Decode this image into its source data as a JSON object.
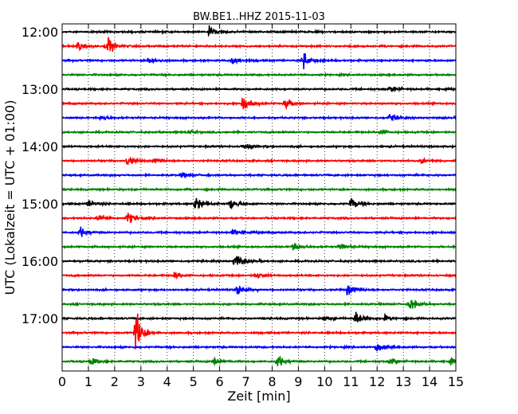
{
  "chart_data": {
    "type": "line",
    "title": "BW.BE1..HHZ 2015-11-03",
    "xlabel": "Zeit  [min]",
    "ylabel": "UTC (Lokalzeit = UTC + 01:00)",
    "xlim": [
      0,
      15
    ],
    "x_ticks": [
      "0",
      "1",
      "2",
      "3",
      "4",
      "5",
      "6",
      "7",
      "8",
      "9",
      "10",
      "11",
      "12",
      "13",
      "14",
      "15"
    ],
    "y_ticks": [
      "12:00",
      "13:00",
      "14:00",
      "15:00",
      "16:00",
      "17:00"
    ],
    "grid": true,
    "trace_interval_minutes": 15,
    "colors": [
      "#000000",
      "#ff0000",
      "#0000ff",
      "#008000"
    ],
    "traces": [
      {
        "start": "12:00",
        "events": [
          {
            "t": 5.6,
            "a": 9
          }
        ]
      },
      {
        "start": "12:15",
        "events": [
          {
            "t": 0.6,
            "a": 7
          },
          {
            "t": 1.7,
            "a": 20
          }
        ]
      },
      {
        "start": "12:30",
        "events": [
          {
            "t": 3.3,
            "a": 7
          },
          {
            "t": 6.5,
            "a": 9
          },
          {
            "t": 9.2,
            "a": 16
          }
        ]
      },
      {
        "start": "12:45",
        "events": []
      },
      {
        "start": "13:00",
        "events": [
          {
            "t": 12.5,
            "a": 6
          }
        ]
      },
      {
        "start": "13:15",
        "events": [
          {
            "t": 6.9,
            "a": 15
          },
          {
            "t": 8.5,
            "a": 10
          }
        ]
      },
      {
        "start": "13:30",
        "events": [
          {
            "t": 1.5,
            "a": 4
          },
          {
            "t": 12.5,
            "a": 7
          }
        ]
      },
      {
        "start": "13:45",
        "events": [
          {
            "t": 4.8,
            "a": 4
          },
          {
            "t": 12.1,
            "a": 5
          }
        ]
      },
      {
        "start": "14:00",
        "events": [
          {
            "t": 6.9,
            "a": 5
          }
        ]
      },
      {
        "start": "14:15",
        "events": [
          {
            "t": 2.5,
            "a": 8
          },
          {
            "t": 3.5,
            "a": 5
          },
          {
            "t": 13.7,
            "a": 4
          }
        ]
      },
      {
        "start": "14:30",
        "events": [
          {
            "t": 4.6,
            "a": 5
          }
        ]
      },
      {
        "start": "14:45",
        "events": []
      },
      {
        "start": "15:00",
        "events": [
          {
            "t": 1.0,
            "a": 6
          },
          {
            "t": 5.1,
            "a": 13
          },
          {
            "t": 6.4,
            "a": 11
          },
          {
            "t": 11.0,
            "a": 10
          }
        ]
      },
      {
        "start": "15:15",
        "events": [
          {
            "t": 1.4,
            "a": 6
          },
          {
            "t": 2.5,
            "a": 11
          }
        ]
      },
      {
        "start": "15:30",
        "events": [
          {
            "t": 0.7,
            "a": 9
          },
          {
            "t": 6.5,
            "a": 5
          }
        ]
      },
      {
        "start": "15:45",
        "events": [
          {
            "t": 8.8,
            "a": 8
          },
          {
            "t": 10.6,
            "a": 6
          }
        ]
      },
      {
        "start": "16:00",
        "events": [
          {
            "t": 6.6,
            "a": 17
          }
        ]
      },
      {
        "start": "16:15",
        "events": [
          {
            "t": 4.3,
            "a": 6
          },
          {
            "t": 7.4,
            "a": 6
          }
        ]
      },
      {
        "start": "16:30",
        "events": [
          {
            "t": 6.7,
            "a": 9
          },
          {
            "t": 10.9,
            "a": 13
          }
        ]
      },
      {
        "start": "16:45",
        "events": [
          {
            "t": 13.3,
            "a": 11
          }
        ]
      },
      {
        "start": "17:00",
        "events": [
          {
            "t": 10.0,
            "a": 5
          },
          {
            "t": 11.2,
            "a": 13
          },
          {
            "t": 12.3,
            "a": 5
          }
        ]
      },
      {
        "start": "17:15",
        "events": [
          {
            "t": 2.8,
            "a": 40
          }
        ]
      },
      {
        "start": "17:30",
        "events": [
          {
            "t": 12.0,
            "a": 9
          }
        ]
      },
      {
        "start": "17:45",
        "events": [
          {
            "t": 1.1,
            "a": 7
          },
          {
            "t": 5.8,
            "a": 9
          },
          {
            "t": 8.2,
            "a": 12
          },
          {
            "t": 12.5,
            "a": 5
          },
          {
            "t": 14.8,
            "a": 5
          }
        ]
      }
    ]
  }
}
